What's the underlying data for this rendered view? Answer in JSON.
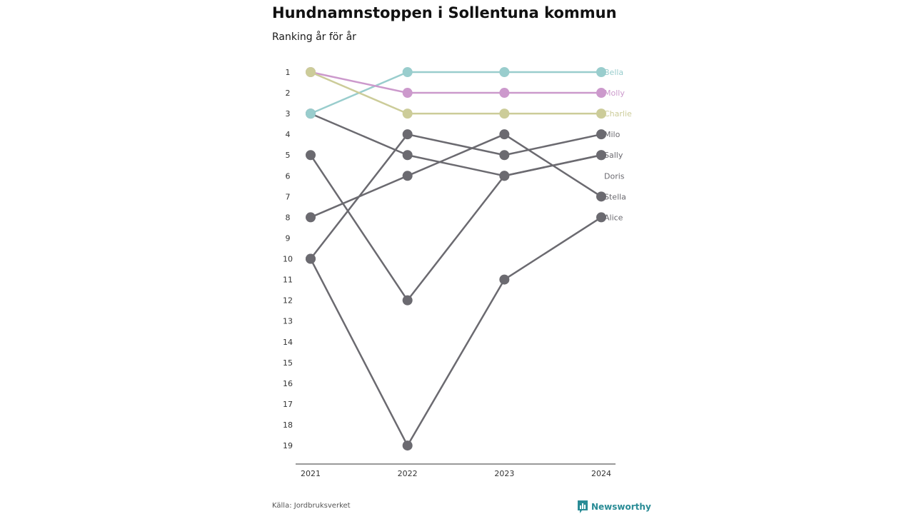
{
  "header": {
    "title": "Hundnamnstoppen i Sollentuna kommun",
    "subtitle": "Ranking år för år"
  },
  "footer": {
    "source": "Källa: Jordbruksverket",
    "brand": "Newsworthy"
  },
  "colors": {
    "Bella": "#99cdcd",
    "Molly": "#cc99cc",
    "Charlie": "#cccc99",
    "default": "#6b6a70",
    "axis": "#333333",
    "text": "#333333"
  },
  "chart_data": {
    "type": "line",
    "chart_kind": "bump chart (ranking)",
    "x": [
      "2021",
      "2022",
      "2023",
      "2024"
    ],
    "y_ticks": [
      1,
      2,
      3,
      4,
      5,
      6,
      7,
      8,
      9,
      10,
      11,
      12,
      13,
      14,
      15,
      16,
      17,
      18,
      19
    ],
    "ylim": [
      1,
      19
    ],
    "y_reversed": true,
    "grid": false,
    "legend": "direct labels at right end of lines",
    "series": [
      {
        "name": "Bella",
        "values": [
          3,
          1,
          1,
          1
        ],
        "highlight": true
      },
      {
        "name": "Molly",
        "values": [
          1,
          2,
          2,
          2
        ],
        "highlight": true
      },
      {
        "name": "Charlie",
        "values": [
          1,
          3,
          3,
          3
        ],
        "highlight": true
      },
      {
        "name": "Milo",
        "values": [
          10,
          4,
          5,
          4
        ],
        "highlight": false
      },
      {
        "name": "Sally",
        "values": [
          3,
          5,
          6,
          5
        ],
        "highlight": false
      },
      {
        "name": "Doris",
        "values": [
          null,
          null,
          null,
          null
        ],
        "highlight": false
      },
      {
        "name": "Stella",
        "values": [
          8,
          6,
          4,
          7
        ],
        "highlight": false
      },
      {
        "name": "Alice",
        "values": [
          10,
          19,
          11,
          8
        ],
        "highlight": false
      },
      {
        "name": "",
        "values": [
          5,
          12,
          6,
          5
        ],
        "highlight": false
      }
    ]
  }
}
